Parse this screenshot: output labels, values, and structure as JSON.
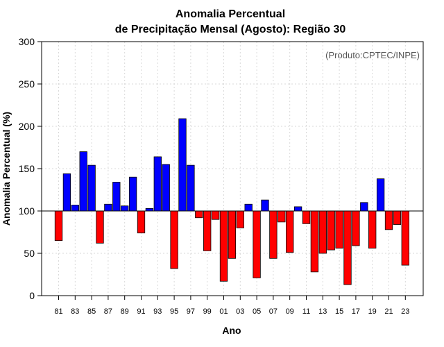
{
  "chart_data": {
    "type": "bar",
    "title_lines": [
      "Anomalia Percentual",
      "de Precipitação Mensal (Agosto): Região 30"
    ],
    "xlabel": "Ano",
    "ylabel": "Anomalia Percentual (%)",
    "annotation": "(Produto:CPTEC/INPE)",
    "ylim": [
      0,
      300
    ],
    "yticks": [
      0,
      50,
      100,
      150,
      200,
      250,
      300
    ],
    "baseline": 100,
    "grid": true,
    "colors": {
      "above": "#0000ff",
      "below": "#ff0000",
      "edge": "#000000",
      "grid": "#d9d9d9"
    },
    "categories": [
      "81",
      "82",
      "83",
      "84",
      "85",
      "86",
      "87",
      "88",
      "89",
      "90",
      "91",
      "92",
      "93",
      "94",
      "95",
      "96",
      "97",
      "98",
      "99",
      "00",
      "01",
      "02",
      "03",
      "04",
      "05",
      "06",
      "07",
      "08",
      "09",
      "10",
      "11",
      "12",
      "13",
      "14",
      "15",
      "16",
      "17",
      "18",
      "19",
      "20",
      "21",
      "22",
      "23"
    ],
    "xtick_labels": [
      "81",
      "83",
      "85",
      "87",
      "89",
      "91",
      "93",
      "95",
      "97",
      "99",
      "01",
      "03",
      "05",
      "07",
      "09",
      "11",
      "13",
      "15",
      "17",
      "19",
      "21",
      "23"
    ],
    "values": [
      65,
      144,
      107,
      170,
      154,
      62,
      108,
      134,
      106,
      140,
      74,
      103,
      164,
      155,
      32,
      209,
      154,
      92,
      53,
      90,
      17,
      44,
      80,
      108,
      21,
      113,
      44,
      87,
      51,
      105,
      85,
      28,
      50,
      54,
      56,
      13,
      59,
      110,
      56,
      138,
      78,
      84,
      36
    ]
  }
}
